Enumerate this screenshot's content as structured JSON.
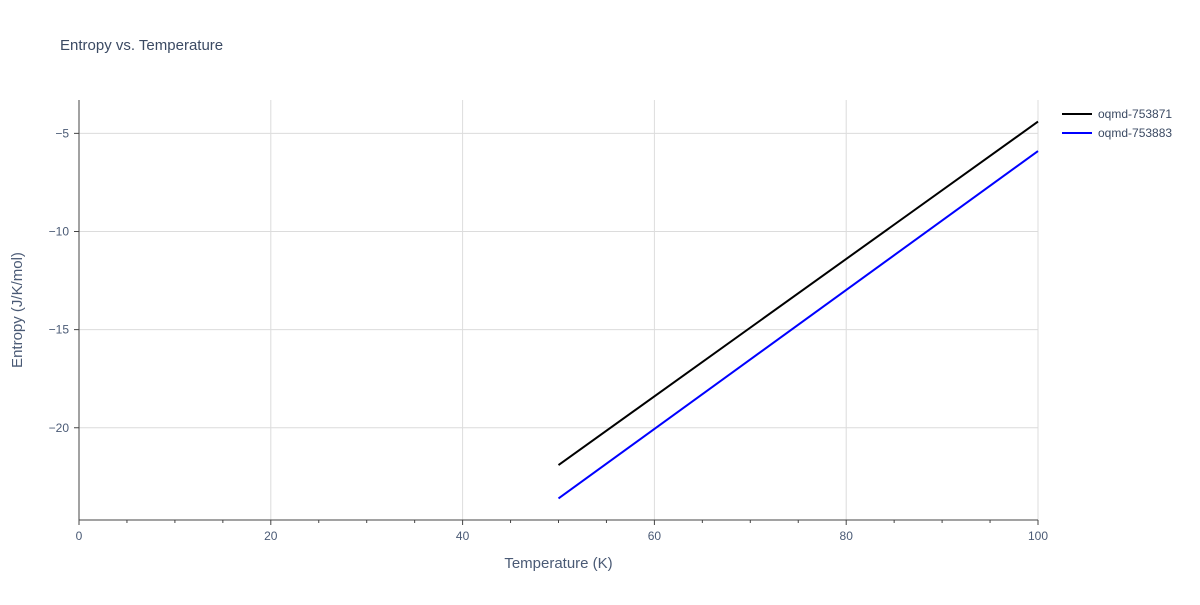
{
  "chart_data": {
    "type": "line",
    "title": "Entropy vs. Temperature",
    "xlabel": "Temperature (K)",
    "ylabel": "Entropy (J/K/mol)",
    "xlim": [
      0,
      100
    ],
    "ylim": [
      -24.7,
      -3.3
    ],
    "x_ticks": [
      0,
      20,
      40,
      60,
      80,
      100
    ],
    "x_tick_labels": [
      "0",
      "20",
      "40",
      "60",
      "80",
      "100"
    ],
    "x_minor_ticks": [
      5,
      10,
      15,
      25,
      30,
      35,
      45,
      50,
      55,
      65,
      70,
      75,
      85,
      90,
      95
    ],
    "y_ticks": [
      -5,
      -10,
      -15,
      -20
    ],
    "y_tick_labels": [
      "−5",
      "−10",
      "−15",
      "−20"
    ],
    "grid": true,
    "legend_position": "top-right",
    "series": [
      {
        "name": "oqmd-753871",
        "color": "#000000",
        "x": [
          50,
          100
        ],
        "y": [
          -21.9,
          -4.4
        ]
      },
      {
        "name": "oqmd-753883",
        "color": "#0000ff",
        "x": [
          50,
          100
        ],
        "y": [
          -23.6,
          -5.9
        ]
      }
    ]
  }
}
